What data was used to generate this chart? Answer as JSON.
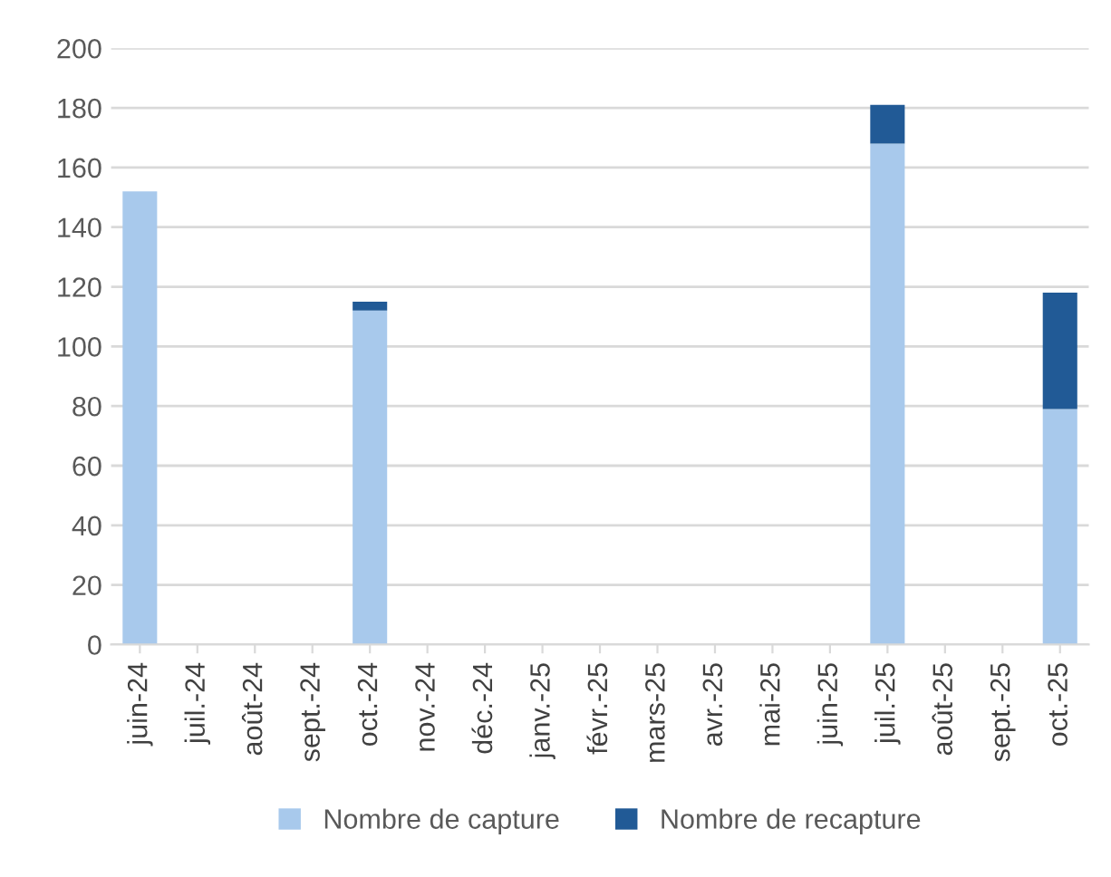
{
  "chart_data": {
    "type": "bar",
    "stacked": true,
    "categories": [
      "juin-24",
      "juil.-24",
      "août-24",
      "sept.-24",
      "oct.-24",
      "nov.-24",
      "déc.-24",
      "janv.-25",
      "févr.-25",
      "mars-25",
      "avr.-25",
      "mai-25",
      "juin-25",
      "juil.-25",
      "août-25",
      "sept.-25",
      "oct.-25"
    ],
    "series": [
      {
        "name": "Nombre de capture",
        "color": "#a8c9ec",
        "values": [
          152,
          null,
          null,
          null,
          112,
          null,
          null,
          null,
          null,
          null,
          null,
          null,
          null,
          168,
          null,
          null,
          79
        ]
      },
      {
        "name": "Nombre de recapture",
        "color": "#215a96",
        "values": [
          null,
          null,
          null,
          null,
          3,
          null,
          null,
          null,
          null,
          null,
          null,
          null,
          null,
          13,
          null,
          null,
          39
        ]
      }
    ],
    "ylim": [
      0,
      200
    ],
    "yticks": [
      0,
      20,
      40,
      60,
      80,
      100,
      120,
      140,
      160,
      180,
      200
    ],
    "grid": "y",
    "legend": "bottom"
  }
}
